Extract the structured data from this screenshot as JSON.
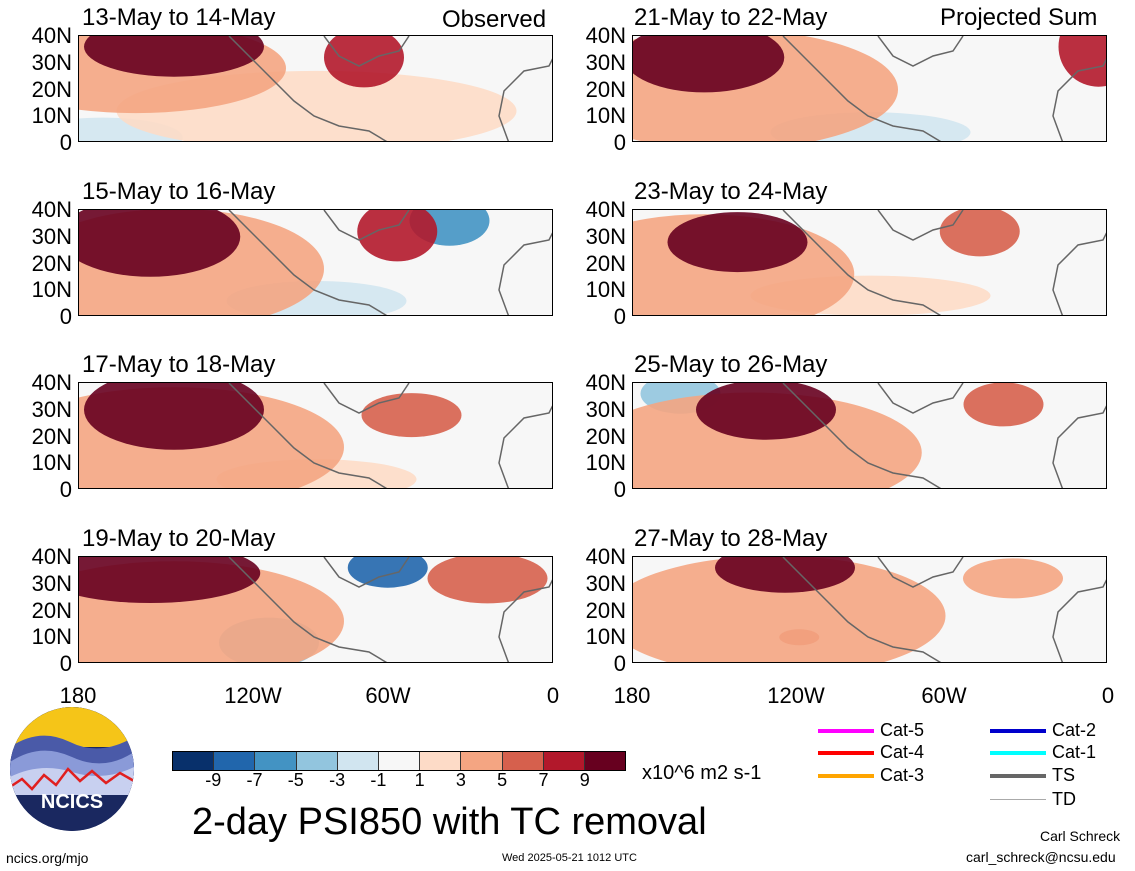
{
  "panels_left": [
    {
      "title": "13-May to 14-May",
      "tag": "Observed"
    },
    {
      "title": "15-May to 16-May",
      "tag": ""
    },
    {
      "title": "17-May to 18-May",
      "tag": ""
    },
    {
      "title": "19-May to 20-May",
      "tag": ""
    }
  ],
  "panels_right": [
    {
      "title": "21-May to 22-May",
      "tag": "Projected Sum"
    },
    {
      "title": "23-May to 24-May",
      "tag": ""
    },
    {
      "title": "25-May to 26-May",
      "tag": ""
    },
    {
      "title": "27-May to 28-May",
      "tag": ""
    }
  ],
  "lat_labels": [
    "40N",
    "30N",
    "20N",
    "10N",
    "0"
  ],
  "lon_labels": [
    "180",
    "120W",
    "60W",
    "0"
  ],
  "colorbar": {
    "labels": [
      "-9",
      "-7",
      "-5",
      "-3",
      "-1",
      "1",
      "3",
      "5",
      "7",
      "9"
    ],
    "colors": [
      "#08306b",
      "#2166ac",
      "#4393c3",
      "#92c5de",
      "#d1e5f0",
      "#f7f7f7",
      "#fddbc7",
      "#f4a582",
      "#d6604d",
      "#b2182b",
      "#67001f"
    ],
    "units": "x10^6 m2 s-1"
  },
  "title": "2-day PSI850 with TC removal",
  "legend": [
    {
      "label": "Cat-5",
      "color": "#ff00ff"
    },
    {
      "label": "Cat-4",
      "color": "#ff0000"
    },
    {
      "label": "Cat-3",
      "color": "#ffa500"
    },
    {
      "label": "Cat-2",
      "color": "#0000cc"
    },
    {
      "label": "Cat-1",
      "color": "#00ffff"
    },
    {
      "label": "TS",
      "color": "#666666"
    },
    {
      "label": "TD",
      "color": "#aaaaaa"
    }
  ],
  "logo_text": "NCICS",
  "footer": {
    "url": "ncics.org/mjo",
    "timestamp": "Wed 2025-05-21 1012 UTC",
    "author": "Carl Schreck",
    "email": "carl_schreck@ncsu.edu"
  }
}
